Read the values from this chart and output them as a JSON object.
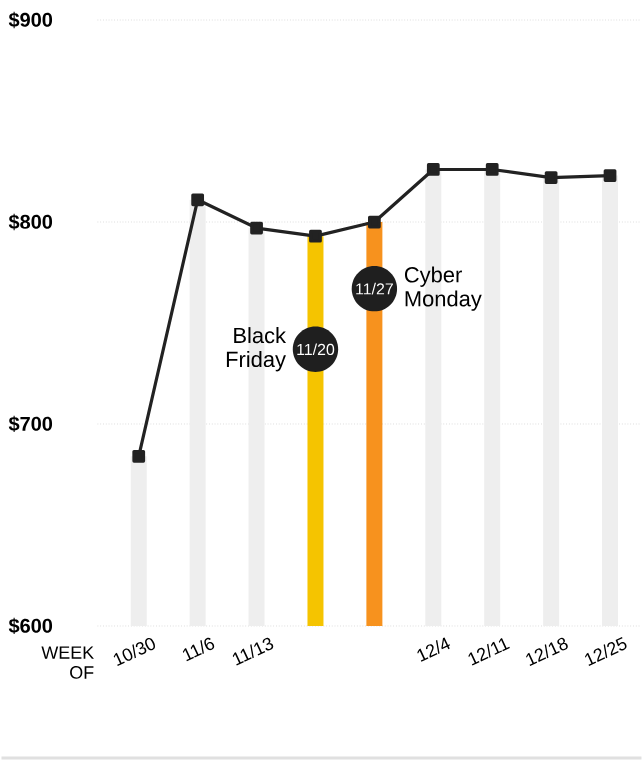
{
  "chart_data": {
    "type": "bar",
    "xlabel": "WEEK OF",
    "categories": [
      "10/30",
      "11/6",
      "11/13",
      "11/20",
      "11/27",
      "12/4",
      "12/11",
      "12/18",
      "12/25"
    ],
    "series": [
      {
        "colors": [
          "#eeeeee",
          "#eeeeee",
          "#eeeeee",
          "#f5c400",
          "#f7921e",
          "#eeeeee",
          "#eeeeee",
          "#eeeeee",
          "#eeeeee"
        ],
        "values": [
          684,
          811,
          797,
          793,
          800,
          826,
          826,
          822,
          823
        ]
      },
      {
        "type": "line",
        "color": "#222222",
        "values": [
          684,
          811,
          797,
          793,
          800,
          826,
          826,
          822,
          823
        ]
      }
    ],
    "ylim": [
      600,
      900
    ],
    "yticks": [
      {
        "value": 600,
        "label": "$600"
      },
      {
        "value": 700,
        "label": "$700"
      },
      {
        "value": 800,
        "label": "$800"
      },
      {
        "value": 900,
        "label": "$900"
      }
    ],
    "grid": "y",
    "marker": "square",
    "line_style": "solid",
    "annotations": [
      "Black Friday",
      "Cyber Monday"
    ]
  }
}
